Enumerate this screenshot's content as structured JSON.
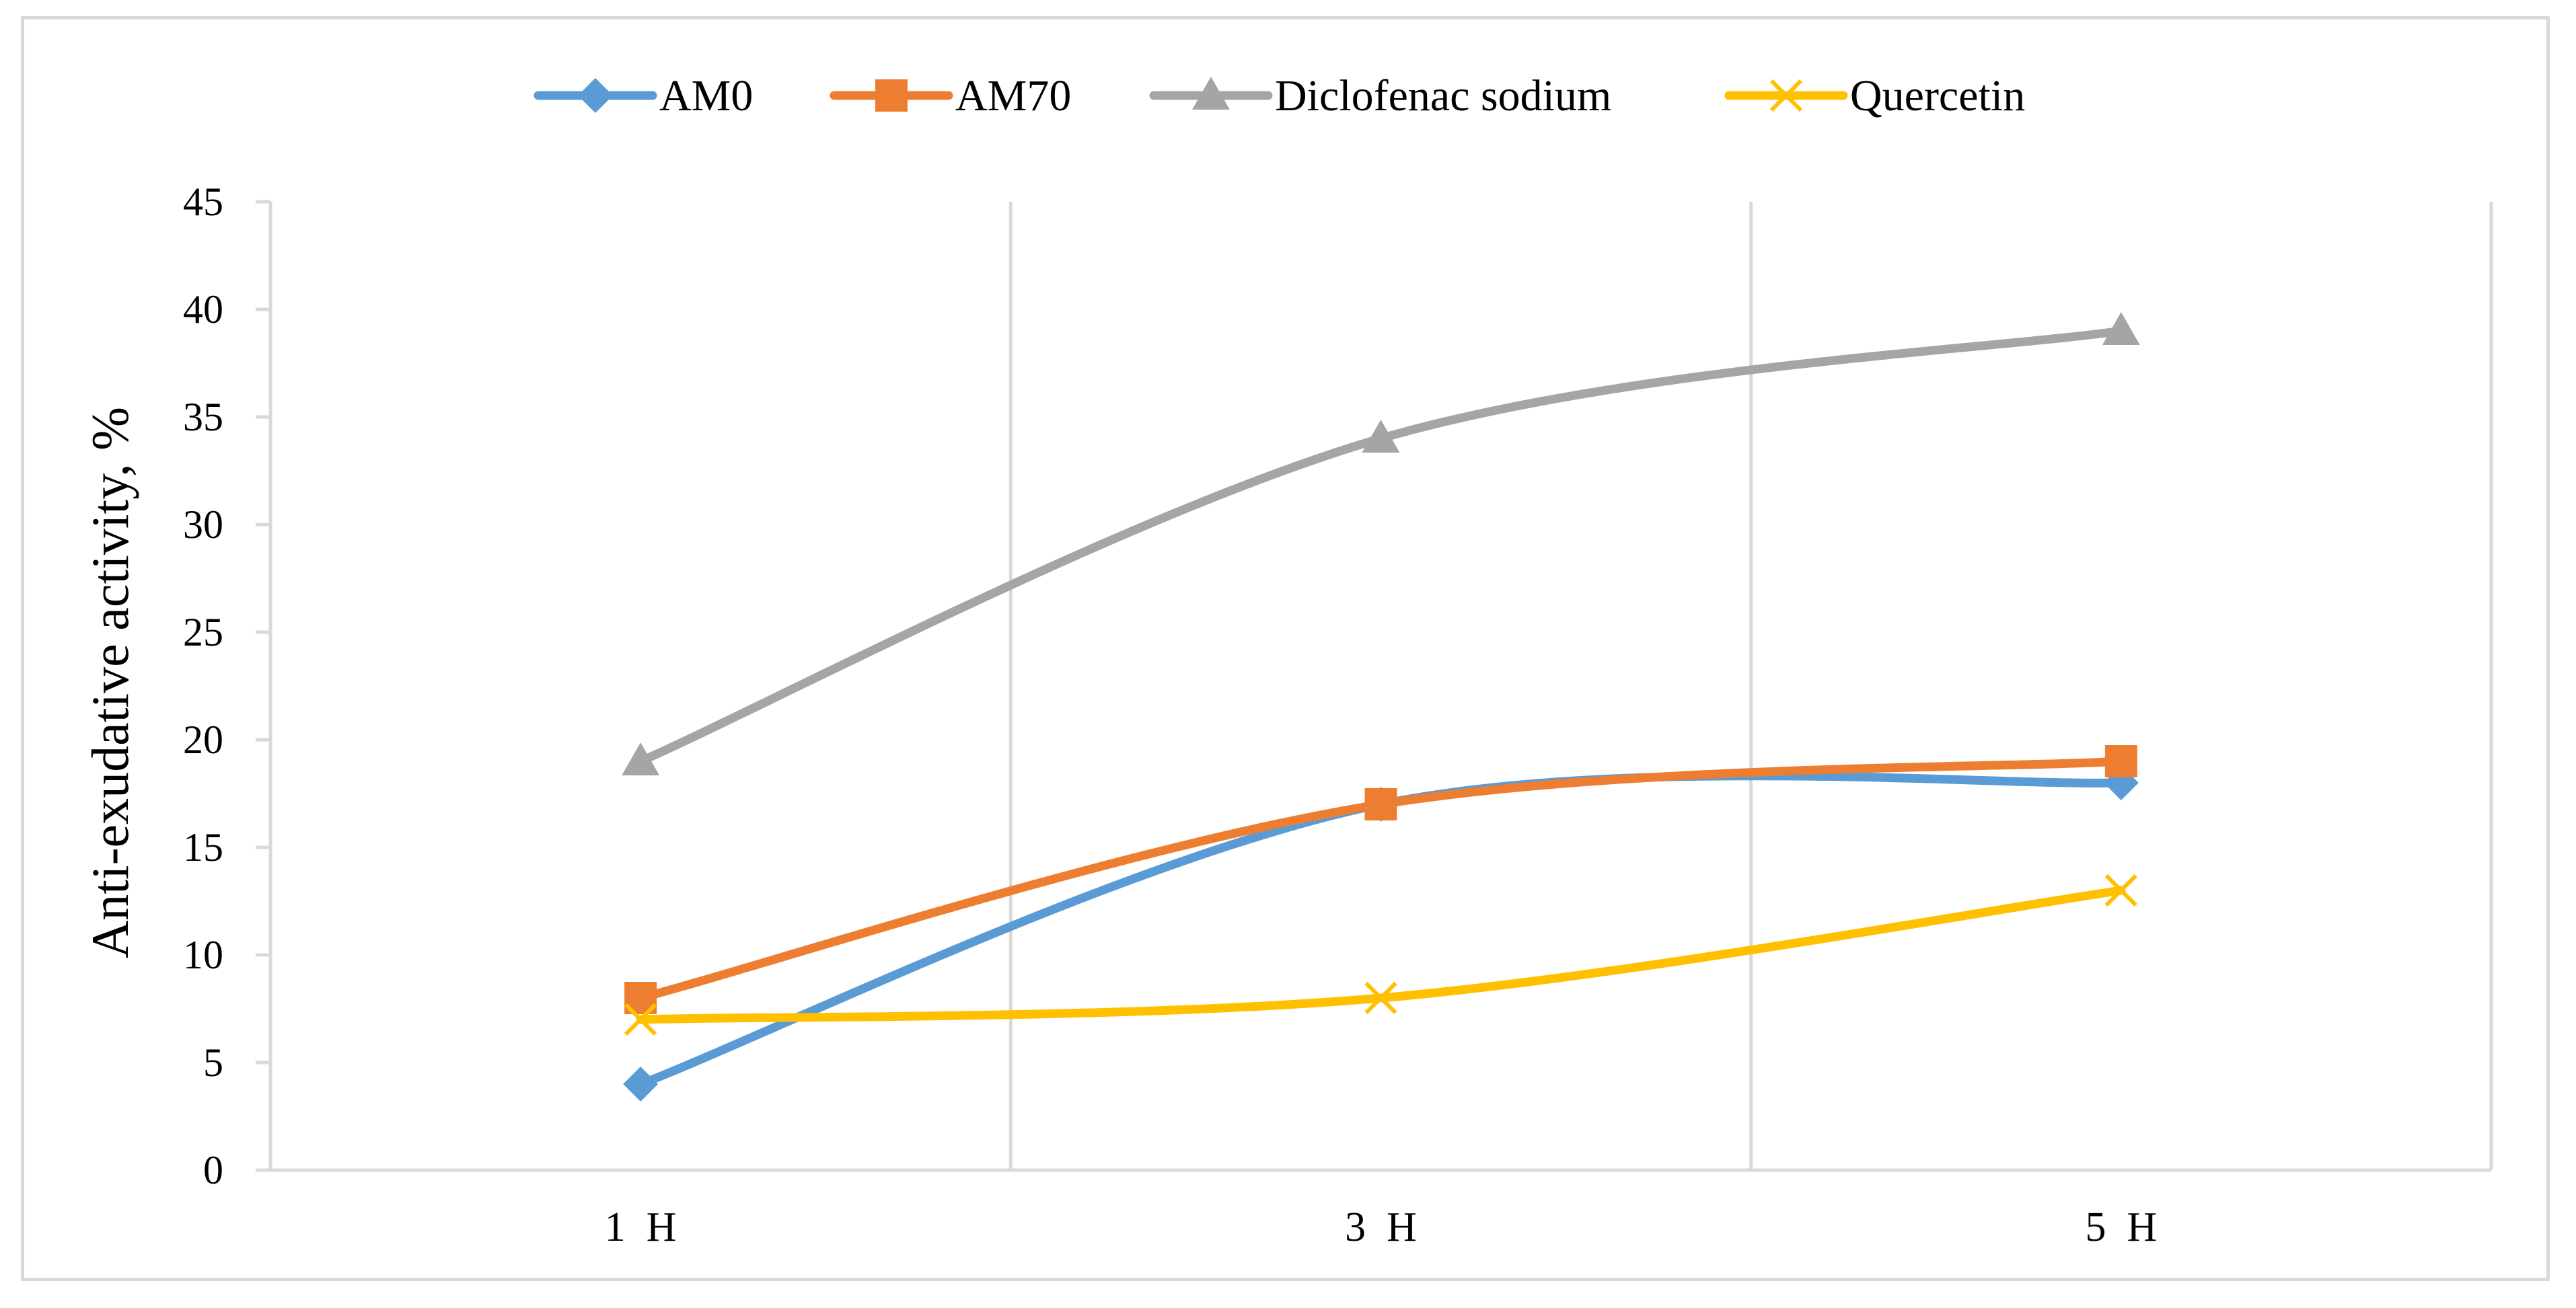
{
  "chart_data": {
    "type": "line",
    "title": "",
    "xlabel": "",
    "ylabel": "Anti-exudative activity, %",
    "categories": [
      "1 H",
      "3 H",
      "5 H"
    ],
    "ylim": [
      0,
      45
    ],
    "yticks": [
      0,
      5,
      10,
      15,
      20,
      25,
      30,
      35,
      40,
      45
    ],
    "grid": "vertical",
    "legend_position": "top",
    "smooth": true,
    "series": [
      {
        "name": "AM0",
        "values": [
          4,
          17,
          18
        ],
        "color": "#5b9bd5",
        "marker": "diamond"
      },
      {
        "name": "AM70",
        "values": [
          8,
          17,
          19
        ],
        "color": "#ed7d31",
        "marker": "square"
      },
      {
        "name": "Diclofenac sodium",
        "values": [
          19,
          34,
          39
        ],
        "color": "#a5a5a5",
        "marker": "triangle"
      },
      {
        "name": "Quercetin",
        "values": [
          7,
          8,
          13
        ],
        "color": "#ffc000",
        "marker": "x"
      }
    ]
  }
}
